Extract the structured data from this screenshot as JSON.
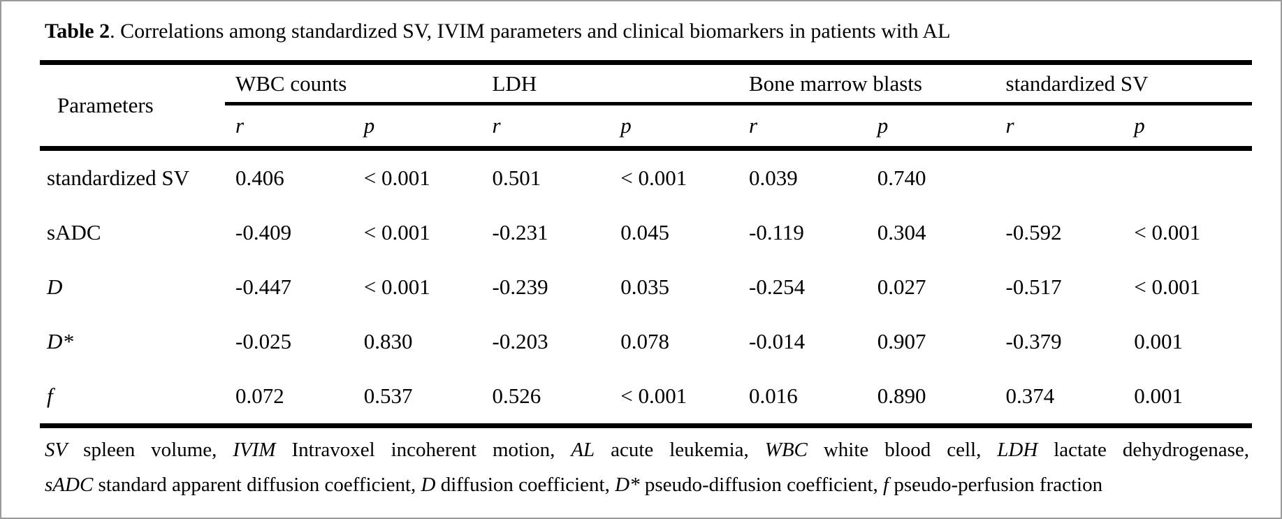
{
  "title": {
    "label": "Table 2",
    "rest": ". Correlations among standardized SV, IVIM parameters and clinical biomarkers in patients with AL"
  },
  "table": {
    "param_header": "Parameters",
    "groups": [
      {
        "label": "WBC counts"
      },
      {
        "label": "LDH"
      },
      {
        "label": "Bone marrow blasts"
      },
      {
        "label": "standardized SV"
      }
    ],
    "subheaders": [
      "r",
      "p",
      "r",
      "p",
      "r",
      "p",
      "r",
      "p"
    ],
    "rows": [
      {
        "param": "standardized SV",
        "values": [
          "0.406",
          "< 0.001",
          "0.501",
          "< 0.001",
          "0.039",
          "0.740",
          "",
          ""
        ]
      },
      {
        "param": "sADC",
        "values": [
          "-0.409",
          "< 0.001",
          "-0.231",
          "0.045",
          "-0.119",
          "0.304",
          "-0.592",
          "< 0.001"
        ]
      },
      {
        "param": "D",
        "values": [
          "-0.447",
          "< 0.001",
          "-0.239",
          "0.035",
          "-0.254",
          "0.027",
          "-0.517",
          "< 0.001"
        ]
      },
      {
        "param": "D*",
        "values": [
          "-0.025",
          "0.830",
          "-0.203",
          "0.078",
          "-0.014",
          "0.907",
          "-0.379",
          "0.001"
        ]
      },
      {
        "param": "f",
        "values": [
          "0.072",
          "0.537",
          "0.526",
          "< 0.001",
          "0.016",
          "0.890",
          "0.374",
          "0.001"
        ]
      }
    ]
  },
  "footnote": {
    "line1": [
      "SV",
      " spleen volume, ",
      "IVIM",
      " Intravoxel incoherent motion, ",
      "AL",
      " acute leukemia, ",
      "WBC",
      " white blood cell, ",
      "LDH",
      " lactate dehydrogenase,"
    ],
    "line2": [
      "sADC",
      " standard apparent diffusion coefficient, ",
      "D",
      " diffusion coefficient, ",
      "D*",
      " pseudo-diffusion coefficient, ",
      "f",
      " pseudo-perfusion fraction"
    ]
  },
  "colors": {
    "text": "#000000",
    "rule": "#000000",
    "background": "#ffffff",
    "frame": "#9a9a9a"
  }
}
